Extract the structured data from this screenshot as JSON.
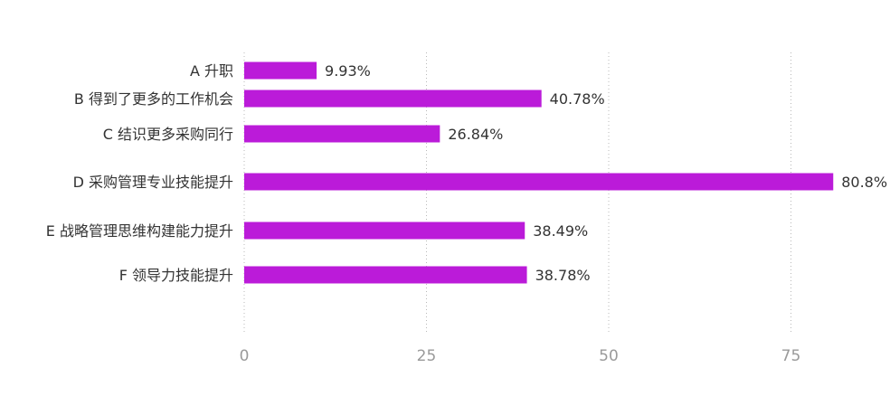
{
  "chart_data": {
    "type": "bar",
    "orientation": "horizontal",
    "categories": [
      "A  升职",
      "B  得到了更多的工作机会",
      "C  结识更多采购同行",
      "D  采购管理专业技能提升",
      "E  战略管理思维构建能力提升",
      "F  领导力技能提升"
    ],
    "values": [
      9.93,
      40.78,
      26.84,
      80.8,
      38.49,
      38.78
    ],
    "value_labels": [
      "9.93%",
      "40.78%",
      "26.84%",
      "80.8%",
      "38.49%",
      "38.78%"
    ],
    "xticks": [
      0,
      25,
      50,
      75
    ],
    "tick_labels": [
      "0",
      "25",
      "50",
      "75"
    ],
    "grid": true,
    "bar_color": "#bb1bd9"
  }
}
